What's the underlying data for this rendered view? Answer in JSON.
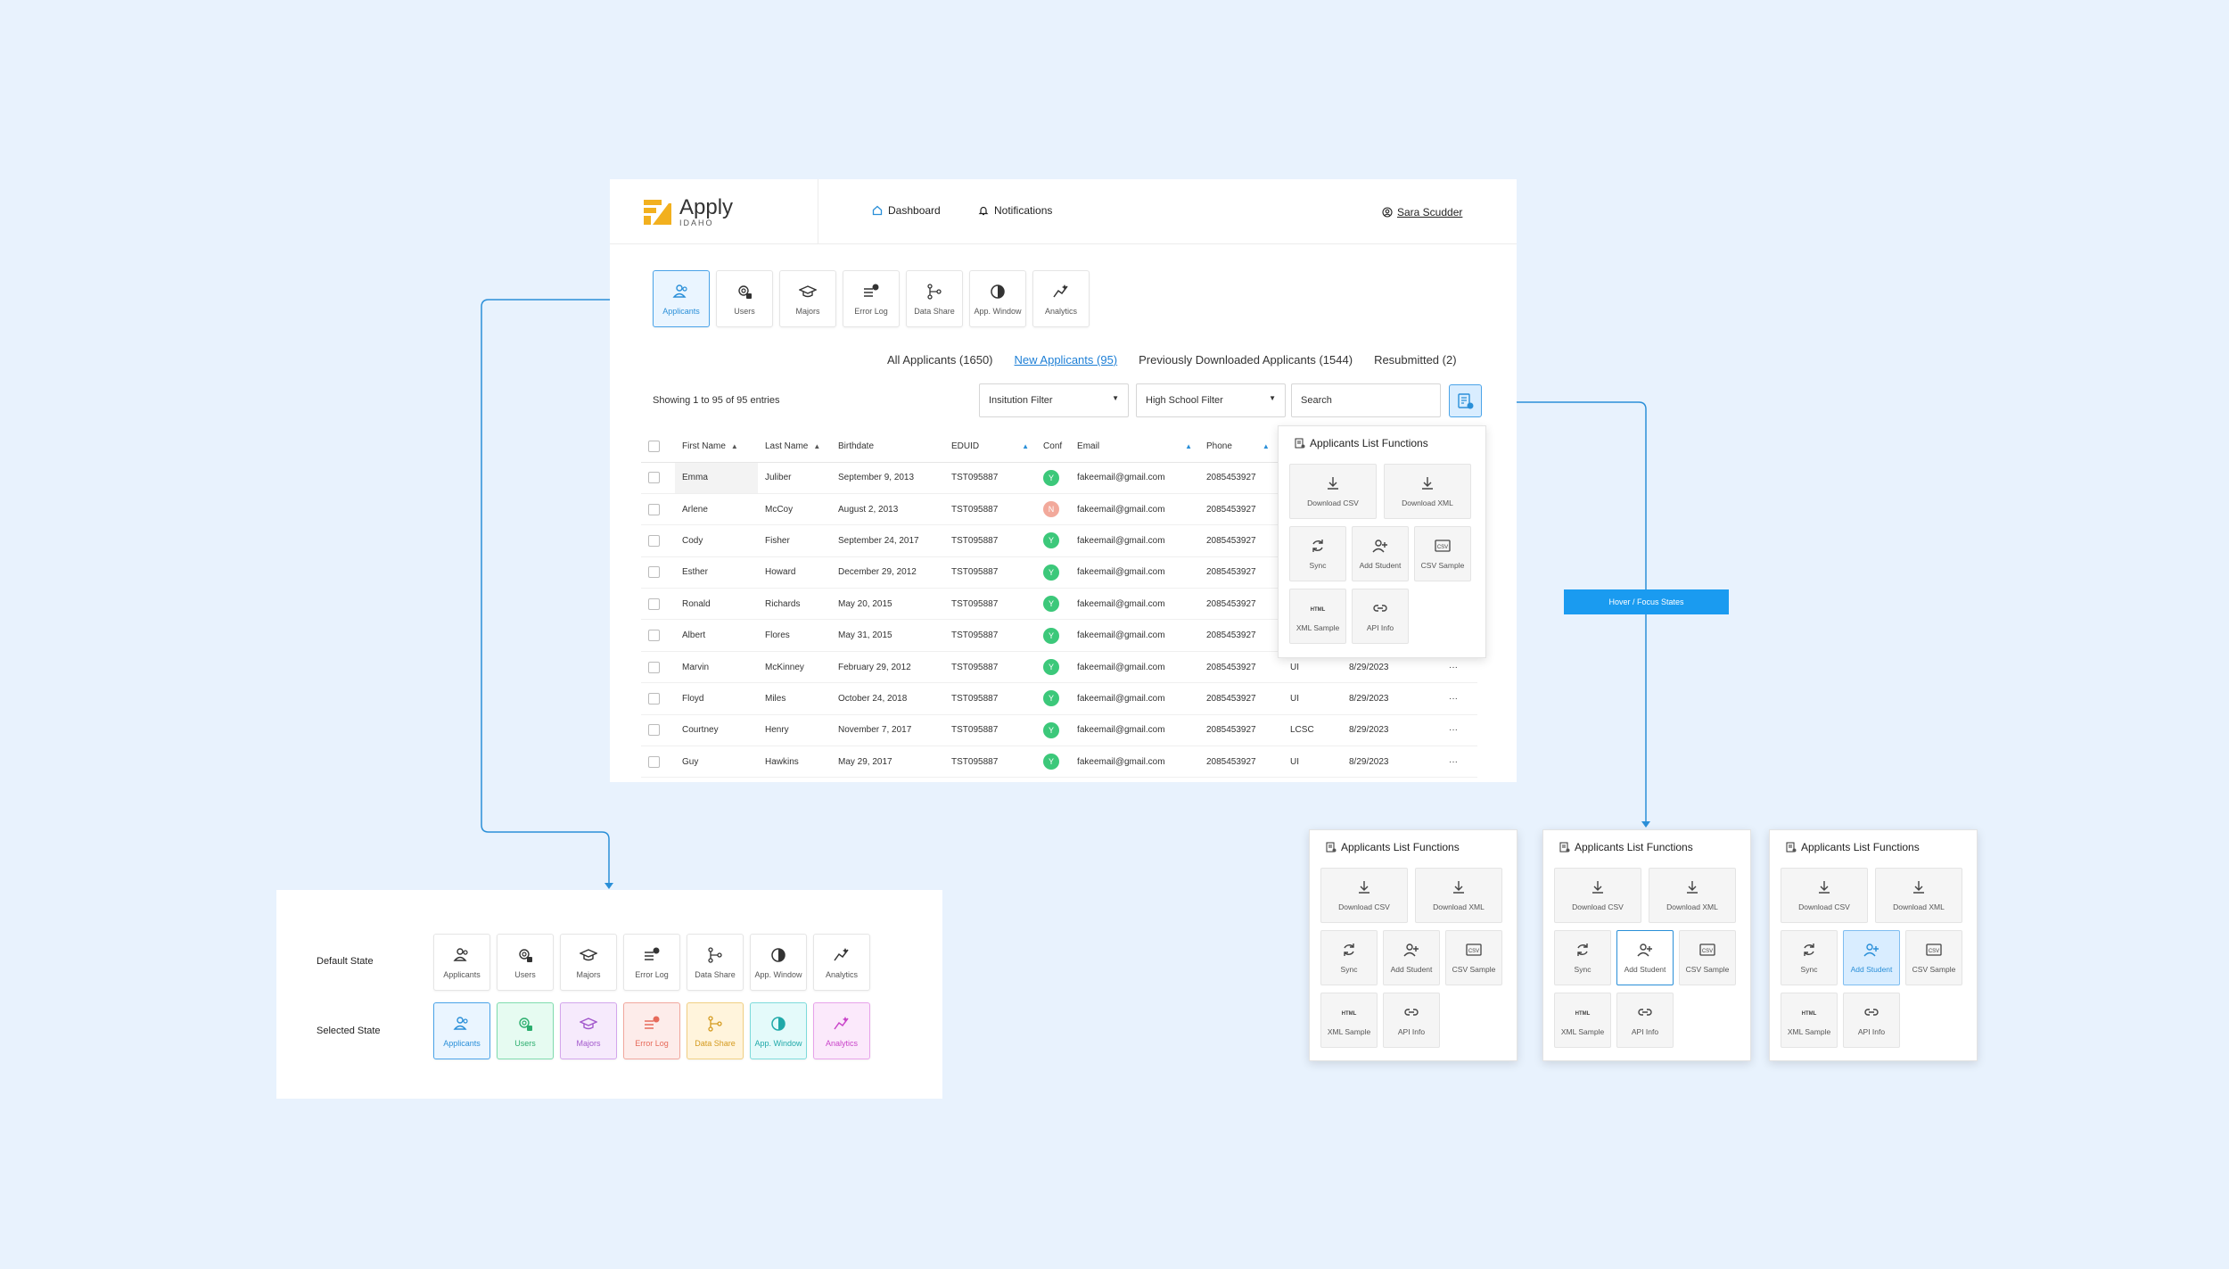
{
  "brand": {
    "name": "Apply",
    "sub": "IDAHO"
  },
  "nav": {
    "dashboard": "Dashboard",
    "notifications": "Notifications"
  },
  "user": {
    "name": "Sara Scudder"
  },
  "tiles": [
    "Applicants",
    "Users",
    "Majors",
    "Error Log",
    "Data Share",
    "App. Window",
    "Analytics"
  ],
  "tabs": [
    "All Applicants (1650)",
    "New Applicants (95)",
    "Previously Downloaded Applicants (1544)",
    "Resubmitted (2)"
  ],
  "showing": "Showing 1 to 95 of 95 entries",
  "filters": {
    "institution": "Insitution Filter",
    "high_school": "High School Filter",
    "search_placeholder": "Search"
  },
  "columns": [
    "First Name",
    "Last Name",
    "Birthdate",
    "EDUID",
    "Conf",
    "Email",
    "Phone"
  ],
  "rows": [
    {
      "first": "Emma",
      "last": "Juliber",
      "birth": "September 9, 2013",
      "eduid": "TST095887",
      "conf": "Y",
      "email": "fakeemail@gmail.com",
      "phone": "2085453927",
      "inst": "",
      "date": "",
      "more": ""
    },
    {
      "first": "Arlene",
      "last": "McCoy",
      "birth": "August 2, 2013",
      "eduid": "TST095887",
      "conf": "N",
      "email": "fakeemail@gmail.com",
      "phone": "2085453927",
      "inst": "",
      "date": "",
      "more": ""
    },
    {
      "first": "Cody",
      "last": "Fisher",
      "birth": "September 24, 2017",
      "eduid": "TST095887",
      "conf": "Y",
      "email": "fakeemail@gmail.com",
      "phone": "2085453927",
      "inst": "",
      "date": "",
      "more": ""
    },
    {
      "first": "Esther",
      "last": "Howard",
      "birth": "December 29, 2012",
      "eduid": "TST095887",
      "conf": "Y",
      "email": "fakeemail@gmail.com",
      "phone": "2085453927",
      "inst": "",
      "date": "",
      "more": ""
    },
    {
      "first": "Ronald",
      "last": "Richards",
      "birth": "May 20, 2015",
      "eduid": "TST095887",
      "conf": "Y",
      "email": "fakeemail@gmail.com",
      "phone": "2085453927",
      "inst": "",
      "date": "",
      "more": ""
    },
    {
      "first": "Albert",
      "last": "Flores",
      "birth": "May 31, 2015",
      "eduid": "TST095887",
      "conf": "Y",
      "email": "fakeemail@gmail.com",
      "phone": "2085453927",
      "inst": "",
      "date": "",
      "more": ""
    },
    {
      "first": "Marvin",
      "last": "McKinney",
      "birth": "February 29, 2012",
      "eduid": "TST095887",
      "conf": "Y",
      "email": "fakeemail@gmail.com",
      "phone": "2085453927",
      "inst": "UI",
      "date": "8/29/2023",
      "more": "···"
    },
    {
      "first": "Floyd",
      "last": "Miles",
      "birth": "October 24, 2018",
      "eduid": "TST095887",
      "conf": "Y",
      "email": "fakeemail@gmail.com",
      "phone": "2085453927",
      "inst": "UI",
      "date": "8/29/2023",
      "more": "···"
    },
    {
      "first": "Courtney",
      "last": "Henry",
      "birth": "November 7, 2017",
      "eduid": "TST095887",
      "conf": "Y",
      "email": "fakeemail@gmail.com",
      "phone": "2085453927",
      "inst": "LCSC",
      "date": "8/29/2023",
      "more": "···"
    },
    {
      "first": "Guy",
      "last": "Hawkins",
      "birth": "May 29, 2017",
      "eduid": "TST095887",
      "conf": "Y",
      "email": "fakeemail@gmail.com",
      "phone": "2085453927",
      "inst": "UI",
      "date": "8/29/2023",
      "more": "···"
    }
  ],
  "popover": {
    "title": "Applicants List Functions",
    "buttons": [
      "Download CSV",
      "Download XML",
      "Sync",
      "Add Student",
      "CSV Sample",
      "XML Sample",
      "API Info"
    ]
  },
  "hover_label": "Hover / Focus States",
  "states": {
    "default": "Default State",
    "selected": "Selected State"
  },
  "colors": {
    "accent": "#2a8fd8",
    "conf_yes": "#3cc87a",
    "conf_no": "#f2a99b",
    "selected_fills": [
      "#eaf5ff",
      "#e6fbf1",
      "#f6eafc",
      "#fdecea",
      "#fff4dc",
      "#e4fafa",
      "#fbe9fb"
    ],
    "selected_borders": [
      "#4aa3e8",
      "#7fdcae",
      "#d3a6ec",
      "#f1a89e",
      "#f1cf83",
      "#7ddbdb",
      "#e7a3ea"
    ],
    "selected_text": [
      "#2a8fd8",
      "#2cae6e",
      "#a258cc",
      "#e66a5a",
      "#d49a1e",
      "#20a9a9",
      "#c944c9"
    ]
  }
}
